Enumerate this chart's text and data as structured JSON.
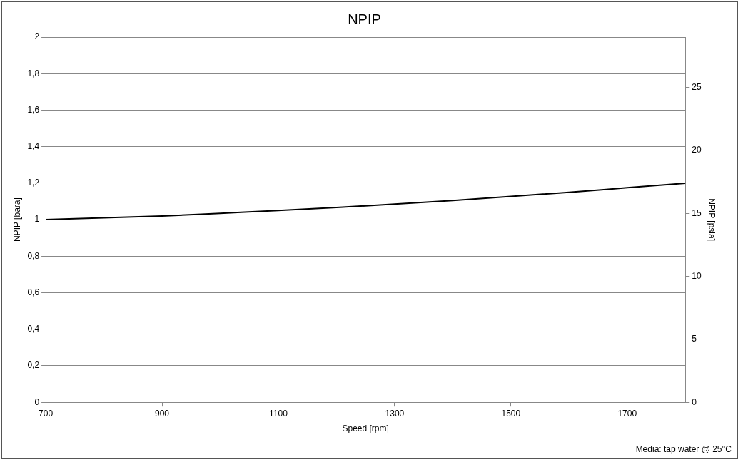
{
  "chart_data": {
    "type": "line",
    "title": "NPIP",
    "xlabel": "Speed [rpm]",
    "ylabel": "NPIP [bara]",
    "y2label": "NPIP [psia]",
    "x": [
      700,
      800,
      900,
      1000,
      1100,
      1200,
      1300,
      1400,
      1500,
      1600,
      1700,
      1800
    ],
    "series": [
      {
        "color": "#000000",
        "values": [
          1.0,
          1.01,
          1.02,
          1.035,
          1.05,
          1.067,
          1.085,
          1.105,
          1.127,
          1.15,
          1.175,
          1.2
        ]
      }
    ],
    "xlim": [
      700,
      1800
    ],
    "xticks": [
      700,
      900,
      1100,
      1300,
      1500,
      1700
    ],
    "ylim": [
      0,
      2
    ],
    "yticks": [
      0,
      {
        "value": 0.2,
        "label": "0,2"
      },
      {
        "value": 0.4,
        "label": "0,4"
      },
      {
        "value": 0.6,
        "label": "0,6"
      },
      {
        "value": 0.8,
        "label": "0,8"
      },
      1,
      {
        "value": 1.2,
        "label": "1,2"
      },
      {
        "value": 1.4,
        "label": "1,4"
      },
      {
        "value": 1.6,
        "label": "1,6"
      },
      {
        "value": 1.8,
        "label": "1,8"
      },
      2
    ],
    "y2lim": [
      0,
      29
    ],
    "y2ticks": [
      0,
      5,
      10,
      15,
      20,
      25
    ],
    "grid": "y",
    "legend": false,
    "marker": "none",
    "line_style": "solid",
    "annotations": [
      "Media: tap water @ 25°C"
    ]
  }
}
